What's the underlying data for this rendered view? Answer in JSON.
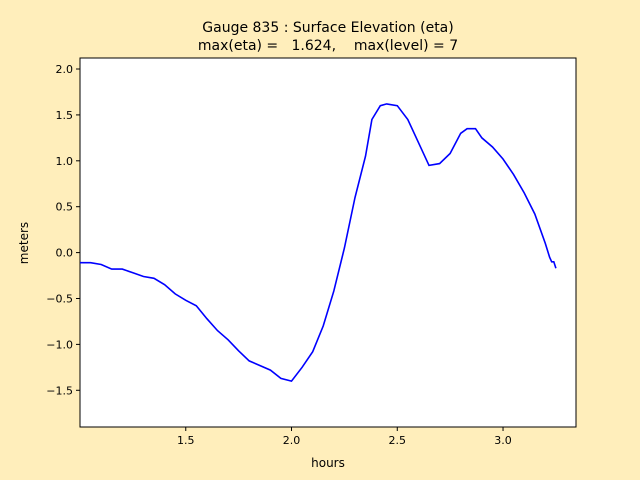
{
  "chart_data": {
    "type": "line",
    "title": "Gauge 835 : Surface Elevation (eta)",
    "subtitle": "max(eta) =   1.624,    max(level) = 7",
    "xlabel": "hours",
    "ylabel": "meters",
    "xlim": [
      1.0,
      3.345
    ],
    "ylim": [
      -1.9,
      2.12
    ],
    "xticks": [
      1.5,
      2.0,
      2.5,
      3.0
    ],
    "xtick_labels": [
      "1.5",
      "2.0",
      "2.5",
      "3.0"
    ],
    "yticks": [
      -1.5,
      -1.0,
      -0.5,
      0.0,
      0.5,
      1.0,
      1.5,
      2.0
    ],
    "ytick_labels": [
      "−1.5",
      "−1.0",
      "−0.5",
      "0.0",
      "0.5",
      "1.0",
      "1.5",
      "2.0"
    ],
    "grid": false,
    "colors": {
      "background": "#ffeebb",
      "plot": "#ffffff",
      "line": "#0000ff"
    },
    "series": [
      {
        "x": [
          1.0,
          1.05,
          1.1,
          1.15,
          1.2,
          1.25,
          1.3,
          1.35,
          1.4,
          1.45,
          1.5,
          1.55,
          1.6,
          1.65,
          1.7,
          1.75,
          1.8,
          1.85,
          1.9,
          1.95,
          2.0,
          2.05,
          2.1,
          2.15,
          2.2,
          2.25,
          2.3,
          2.35,
          2.38,
          2.42,
          2.45,
          2.5,
          2.55,
          2.6,
          2.65,
          2.7,
          2.75,
          2.8,
          2.83,
          2.87,
          2.9,
          2.95,
          3.0,
          3.05,
          3.1,
          3.15,
          3.2,
          3.22,
          3.23,
          3.24,
          3.25
        ],
        "y": [
          -0.11,
          -0.11,
          -0.13,
          -0.18,
          -0.18,
          -0.22,
          -0.26,
          -0.28,
          -0.35,
          -0.45,
          -0.52,
          -0.58,
          -0.72,
          -0.85,
          -0.95,
          -1.07,
          -1.18,
          -1.23,
          -1.28,
          -1.37,
          -1.4,
          -1.25,
          -1.08,
          -0.8,
          -0.42,
          0.05,
          0.6,
          1.05,
          1.45,
          1.6,
          1.62,
          1.6,
          1.45,
          1.2,
          0.95,
          0.97,
          1.08,
          1.3,
          1.35,
          1.35,
          1.25,
          1.15,
          1.02,
          0.85,
          0.65,
          0.42,
          0.1,
          -0.05,
          -0.1,
          -0.1,
          -0.17
        ]
      }
    ]
  }
}
